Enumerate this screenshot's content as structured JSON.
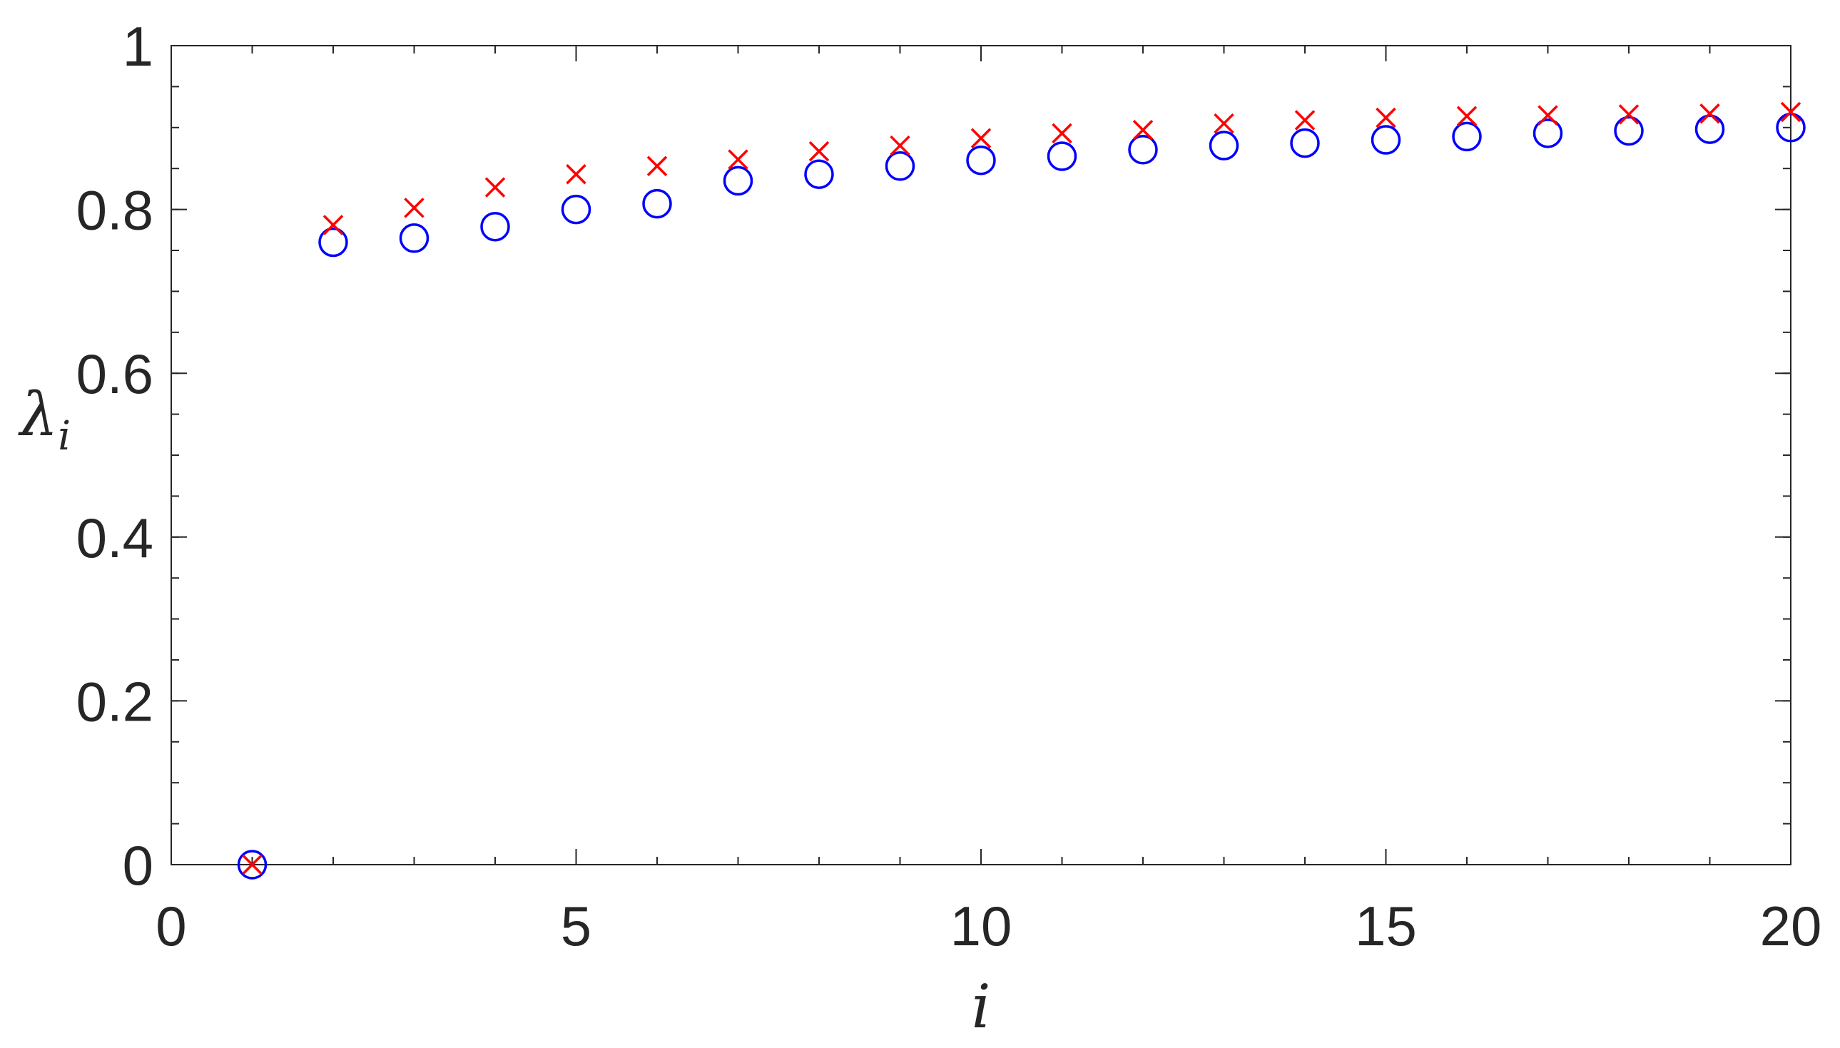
{
  "chart_data": {
    "type": "scatter",
    "xlabel": "i",
    "ylabel_main": "λ",
    "ylabel_sub": "i",
    "xlim": [
      0,
      20
    ],
    "ylim": [
      0,
      1
    ],
    "xticks": [
      0,
      5,
      10,
      15,
      20
    ],
    "xtick_labels": [
      "0",
      "5",
      "10",
      "15",
      "20"
    ],
    "yticks": [
      0,
      0.2,
      0.4,
      0.6,
      0.8,
      1
    ],
    "ytick_labels": [
      "0",
      "0.2",
      "0.4",
      "0.6",
      "0.8",
      "1"
    ],
    "grid": false,
    "series": [
      {
        "marker": "circle",
        "color": "#0000ff",
        "x": [
          1,
          2,
          3,
          4,
          5,
          6,
          7,
          8,
          9,
          10,
          11,
          12,
          13,
          14,
          15,
          16,
          17,
          18,
          19,
          20
        ],
        "y": [
          0,
          0.76,
          0.765,
          0.779,
          0.8,
          0.807,
          0.835,
          0.843,
          0.853,
          0.86,
          0.865,
          0.873,
          0.878,
          0.881,
          0.885,
          0.889,
          0.893,
          0.896,
          0.898,
          0.9
        ]
      },
      {
        "marker": "x",
        "color": "#ff0000",
        "x": [
          1,
          2,
          3,
          4,
          5,
          6,
          7,
          8,
          9,
          10,
          11,
          12,
          13,
          14,
          15,
          16,
          17,
          18,
          19,
          20
        ],
        "y": [
          0,
          0.781,
          0.802,
          0.827,
          0.843,
          0.853,
          0.861,
          0.871,
          0.878,
          0.887,
          0.893,
          0.897,
          0.905,
          0.909,
          0.912,
          0.914,
          0.915,
          0.916,
          0.917,
          0.919
        ]
      }
    ]
  }
}
